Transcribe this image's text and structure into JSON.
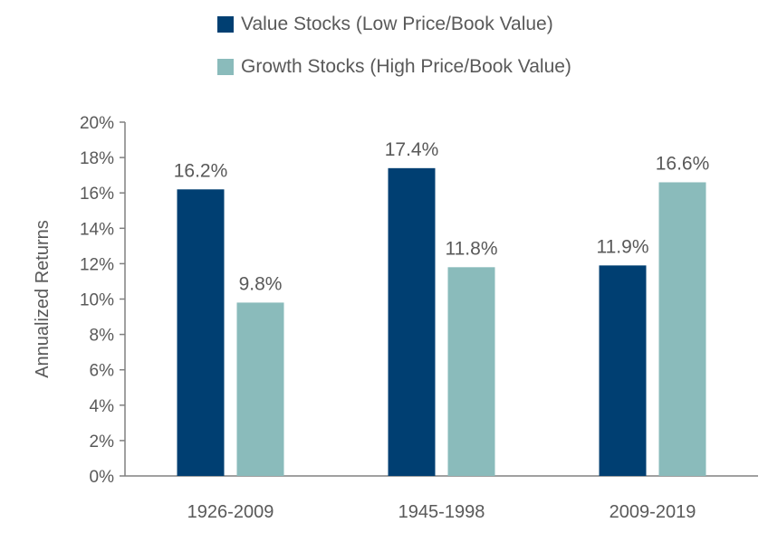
{
  "chart_data": {
    "type": "bar",
    "categories": [
      "1926-2009",
      "1945-1998",
      "2009-2019"
    ],
    "series": [
      {
        "name": "Value Stocks (Low Price/Book Value)",
        "color": "#003F72",
        "values": [
          16.2,
          17.4,
          11.9
        ],
        "labels": [
          "16.2%",
          "17.4%",
          "11.9%"
        ]
      },
      {
        "name": "Growth Stocks (High Price/Book Value)",
        "color": "#8ABBBB",
        "values": [
          9.8,
          11.8,
          16.6
        ],
        "labels": [
          "9.8%",
          "11.8%",
          "16.6%"
        ]
      }
    ],
    "ylabel": "Annualized Returns",
    "xlabel": "",
    "ylim": [
      0,
      20
    ],
    "yticks": [
      0,
      2,
      4,
      6,
      8,
      10,
      12,
      14,
      16,
      18,
      20
    ],
    "ytick_labels": [
      "0%",
      "2%",
      "4%",
      "6%",
      "8%",
      "10%",
      "12%",
      "14%",
      "16%",
      "18%",
      "20%"
    ],
    "grid": false,
    "legend_position": "top"
  }
}
